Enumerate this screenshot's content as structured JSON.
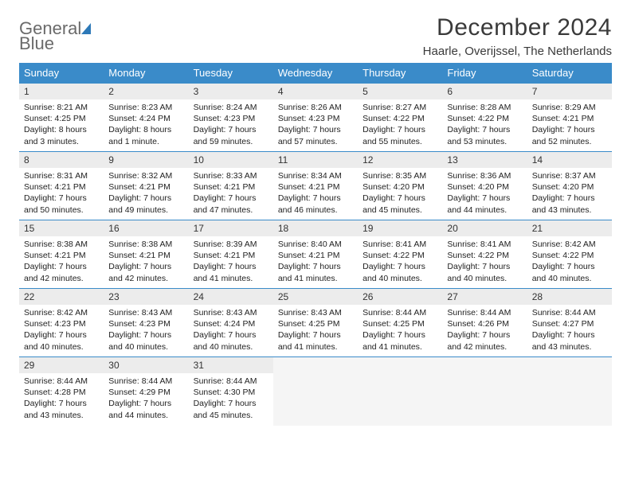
{
  "logo": {
    "line1": "General",
    "line2": "Blue"
  },
  "title": "December 2024",
  "location": "Haarle, Overijssel, The Netherlands",
  "colors": {
    "header_bg": "#3a8bc9",
    "header_text": "#ffffff",
    "daynum_bg": "#ececec",
    "rule": "#3a8bc9",
    "empty_bg": "#f5f5f5",
    "logo_gray": "#6a6a6a",
    "logo_blue": "#2d79b8"
  },
  "weekdays": [
    "Sunday",
    "Monday",
    "Tuesday",
    "Wednesday",
    "Thursday",
    "Friday",
    "Saturday"
  ],
  "weeks": [
    [
      {
        "n": "1",
        "sr": "8:21 AM",
        "ss": "4:25 PM",
        "dl": "8 hours and 3 minutes."
      },
      {
        "n": "2",
        "sr": "8:23 AM",
        "ss": "4:24 PM",
        "dl": "8 hours and 1 minute."
      },
      {
        "n": "3",
        "sr": "8:24 AM",
        "ss": "4:23 PM",
        "dl": "7 hours and 59 minutes."
      },
      {
        "n": "4",
        "sr": "8:26 AM",
        "ss": "4:23 PM",
        "dl": "7 hours and 57 minutes."
      },
      {
        "n": "5",
        "sr": "8:27 AM",
        "ss": "4:22 PM",
        "dl": "7 hours and 55 minutes."
      },
      {
        "n": "6",
        "sr": "8:28 AM",
        "ss": "4:22 PM",
        "dl": "7 hours and 53 minutes."
      },
      {
        "n": "7",
        "sr": "8:29 AM",
        "ss": "4:21 PM",
        "dl": "7 hours and 52 minutes."
      }
    ],
    [
      {
        "n": "8",
        "sr": "8:31 AM",
        "ss": "4:21 PM",
        "dl": "7 hours and 50 minutes."
      },
      {
        "n": "9",
        "sr": "8:32 AM",
        "ss": "4:21 PM",
        "dl": "7 hours and 49 minutes."
      },
      {
        "n": "10",
        "sr": "8:33 AM",
        "ss": "4:21 PM",
        "dl": "7 hours and 47 minutes."
      },
      {
        "n": "11",
        "sr": "8:34 AM",
        "ss": "4:21 PM",
        "dl": "7 hours and 46 minutes."
      },
      {
        "n": "12",
        "sr": "8:35 AM",
        "ss": "4:20 PM",
        "dl": "7 hours and 45 minutes."
      },
      {
        "n": "13",
        "sr": "8:36 AM",
        "ss": "4:20 PM",
        "dl": "7 hours and 44 minutes."
      },
      {
        "n": "14",
        "sr": "8:37 AM",
        "ss": "4:20 PM",
        "dl": "7 hours and 43 minutes."
      }
    ],
    [
      {
        "n": "15",
        "sr": "8:38 AM",
        "ss": "4:21 PM",
        "dl": "7 hours and 42 minutes."
      },
      {
        "n": "16",
        "sr": "8:38 AM",
        "ss": "4:21 PM",
        "dl": "7 hours and 42 minutes."
      },
      {
        "n": "17",
        "sr": "8:39 AM",
        "ss": "4:21 PM",
        "dl": "7 hours and 41 minutes."
      },
      {
        "n": "18",
        "sr": "8:40 AM",
        "ss": "4:21 PM",
        "dl": "7 hours and 41 minutes."
      },
      {
        "n": "19",
        "sr": "8:41 AM",
        "ss": "4:22 PM",
        "dl": "7 hours and 40 minutes."
      },
      {
        "n": "20",
        "sr": "8:41 AM",
        "ss": "4:22 PM",
        "dl": "7 hours and 40 minutes."
      },
      {
        "n": "21",
        "sr": "8:42 AM",
        "ss": "4:22 PM",
        "dl": "7 hours and 40 minutes."
      }
    ],
    [
      {
        "n": "22",
        "sr": "8:42 AM",
        "ss": "4:23 PM",
        "dl": "7 hours and 40 minutes."
      },
      {
        "n": "23",
        "sr": "8:43 AM",
        "ss": "4:23 PM",
        "dl": "7 hours and 40 minutes."
      },
      {
        "n": "24",
        "sr": "8:43 AM",
        "ss": "4:24 PM",
        "dl": "7 hours and 40 minutes."
      },
      {
        "n": "25",
        "sr": "8:43 AM",
        "ss": "4:25 PM",
        "dl": "7 hours and 41 minutes."
      },
      {
        "n": "26",
        "sr": "8:44 AM",
        "ss": "4:25 PM",
        "dl": "7 hours and 41 minutes."
      },
      {
        "n": "27",
        "sr": "8:44 AM",
        "ss": "4:26 PM",
        "dl": "7 hours and 42 minutes."
      },
      {
        "n": "28",
        "sr": "8:44 AM",
        "ss": "4:27 PM",
        "dl": "7 hours and 43 minutes."
      }
    ],
    [
      {
        "n": "29",
        "sr": "8:44 AM",
        "ss": "4:28 PM",
        "dl": "7 hours and 43 minutes."
      },
      {
        "n": "30",
        "sr": "8:44 AM",
        "ss": "4:29 PM",
        "dl": "7 hours and 44 minutes."
      },
      {
        "n": "31",
        "sr": "8:44 AM",
        "ss": "4:30 PM",
        "dl": "7 hours and 45 minutes."
      },
      null,
      null,
      null,
      null
    ]
  ],
  "labels": {
    "sunrise": "Sunrise: ",
    "sunset": "Sunset: ",
    "daylight": "Daylight: "
  }
}
